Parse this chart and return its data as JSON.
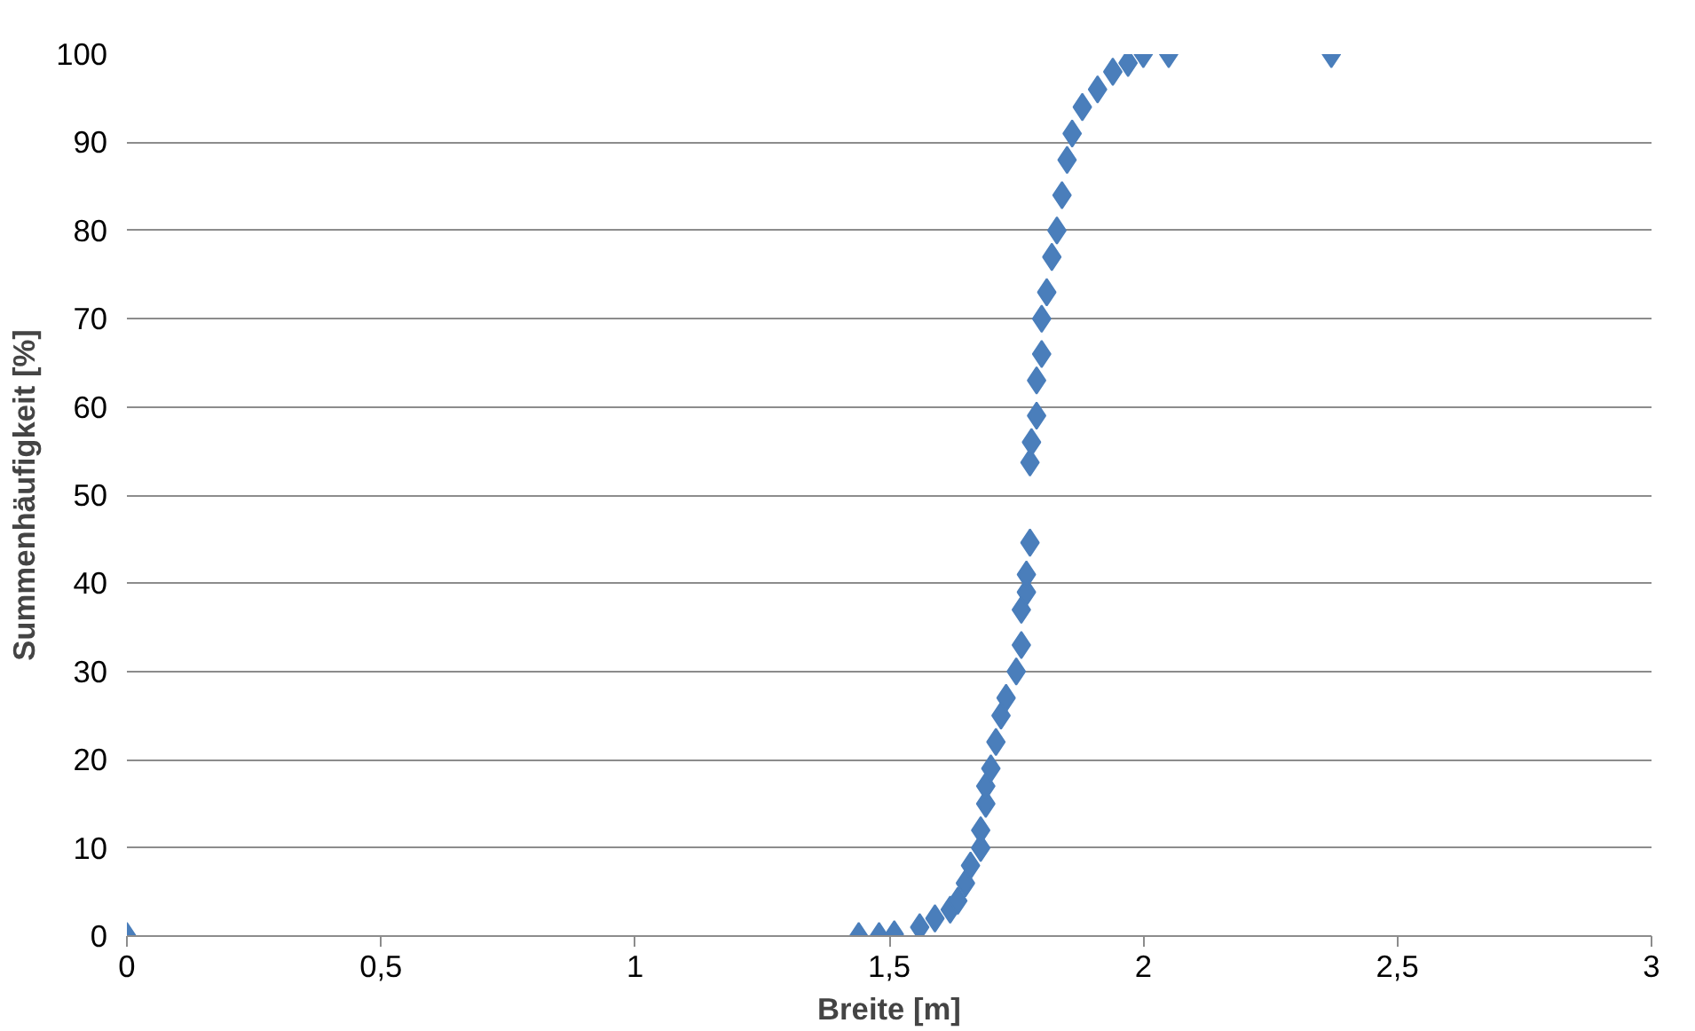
{
  "chart_data": {
    "type": "scatter",
    "xlabel": "Breite [m]",
    "ylabel": "Summenhäufigkeit [%]",
    "xlim": [
      0,
      3
    ],
    "ylim": [
      0,
      100
    ],
    "xticks": [
      0,
      {
        "value": 0.5,
        "label": "0,5"
      },
      1,
      {
        "value": 1.5,
        "label": "1,5"
      },
      2,
      {
        "value": 2.5,
        "label": "2,5"
      },
      3
    ],
    "yticks": [
      0,
      10,
      20,
      30,
      40,
      50,
      60,
      70,
      80,
      90,
      100
    ],
    "grid": "y",
    "marker": "diamond",
    "series": [
      {
        "color": "#4a7ebb",
        "x": [
          0,
          1.44,
          1.48,
          1.51,
          1.56,
          1.59,
          1.62,
          1.635,
          1.65,
          1.66,
          1.68,
          1.68,
          1.69,
          1.69,
          1.7,
          1.71,
          1.72,
          1.73,
          1.75,
          1.76,
          1.76,
          1.77,
          1.77,
          1.777,
          1.777,
          1.78,
          1.79,
          1.79,
          1.8,
          1.8,
          1.81,
          1.82,
          1.83,
          1.84,
          1.85,
          1.86,
          1.88,
          1.91,
          1.94,
          1.97,
          2.0,
          2.05,
          2.37
        ],
        "values": [
          0,
          0,
          0,
          0.2,
          1,
          2,
          3,
          4,
          6,
          8,
          10,
          12,
          15,
          17,
          19,
          22,
          25,
          27,
          30,
          33,
          37,
          39,
          41,
          44.6,
          53.7,
          56,
          59,
          63,
          66,
          70,
          73,
          77,
          80,
          84,
          88,
          91,
          94,
          96,
          98,
          99,
          100,
          100,
          100
        ]
      }
    ]
  }
}
